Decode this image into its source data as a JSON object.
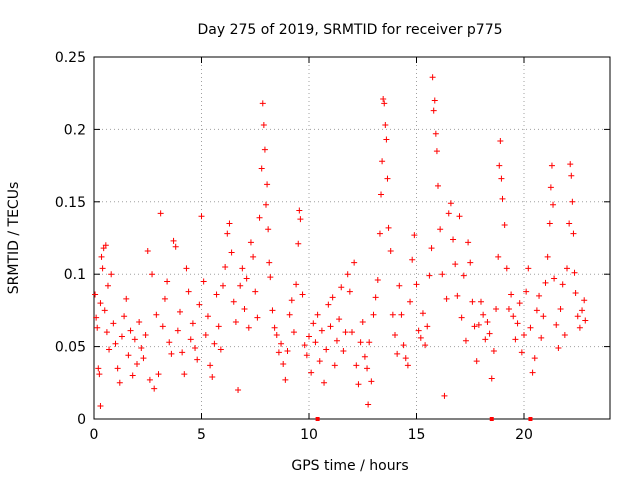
{
  "chart_data": {
    "type": "scatter",
    "title": "Day 275 of 2019, SRMTID for receiver p775",
    "xlabel": "GPS time / hours",
    "ylabel": "SRMTID / TECUs",
    "xlim": [
      0,
      24
    ],
    "ylim": [
      0,
      0.25
    ],
    "x_ticks": [
      0,
      5,
      10,
      15,
      20
    ],
    "x_tick_labels": [
      "0",
      "5",
      "10",
      "15",
      "20"
    ],
    "y_ticks": [
      0,
      0.05,
      0.1,
      0.15,
      0.2,
      0.25
    ],
    "y_tick_labels": [
      "0",
      "0.05",
      "0.1",
      "0.15",
      "0.2",
      "0.25"
    ],
    "grid": true,
    "marker": "plus",
    "color": "#ff0000",
    "series": [
      {
        "name": "SRMTID",
        "points": [
          [
            0.05,
            0.086
          ],
          [
            0.1,
            0.07
          ],
          [
            0.15,
            0.063
          ],
          [
            0.2,
            0.035
          ],
          [
            0.25,
            0.031
          ],
          [
            0.3,
            0.009
          ],
          [
            0.3,
            0.08
          ],
          [
            0.35,
            0.112
          ],
          [
            0.4,
            0.104
          ],
          [
            0.45,
            0.118
          ],
          [
            0.5,
            0.075
          ],
          [
            0.55,
            0.12
          ],
          [
            0.6,
            0.06
          ],
          [
            0.65,
            0.092
          ],
          [
            0.7,
            0.048
          ],
          [
            0.8,
            0.1
          ],
          [
            0.9,
            0.066
          ],
          [
            1.0,
            0.052
          ],
          [
            1.1,
            0.035
          ],
          [
            1.2,
            0.025
          ],
          [
            1.3,
            0.057
          ],
          [
            1.4,
            0.071
          ],
          [
            1.5,
            0.083
          ],
          [
            1.6,
            0.044
          ],
          [
            1.7,
            0.061
          ],
          [
            1.8,
            0.03
          ],
          [
            1.9,
            0.055
          ],
          [
            2.0,
            0.038
          ],
          [
            2.1,
            0.067
          ],
          [
            2.2,
            0.049
          ],
          [
            2.3,
            0.042
          ],
          [
            2.4,
            0.058
          ],
          [
            2.5,
            0.116
          ],
          [
            2.6,
            0.027
          ],
          [
            2.7,
            0.1
          ],
          [
            2.8,
            0.021
          ],
          [
            2.9,
            0.072
          ],
          [
            3.0,
            0.031
          ],
          [
            3.1,
            0.142
          ],
          [
            3.2,
            0.064
          ],
          [
            3.3,
            0.083
          ],
          [
            3.4,
            0.095
          ],
          [
            3.5,
            0.053
          ],
          [
            3.6,
            0.045
          ],
          [
            3.7,
            0.123
          ],
          [
            3.8,
            0.119
          ],
          [
            3.9,
            0.061
          ],
          [
            4.0,
            0.074
          ],
          [
            4.1,
            0.046
          ],
          [
            4.2,
            0.031
          ],
          [
            4.3,
            0.104
          ],
          [
            4.4,
            0.088
          ],
          [
            4.5,
            0.055
          ],
          [
            4.6,
            0.066
          ],
          [
            4.7,
            0.049
          ],
          [
            4.8,
            0.041
          ],
          [
            4.9,
            0.079
          ],
          [
            5.0,
            0.14
          ],
          [
            5.1,
            0.095
          ],
          [
            5.2,
            0.058
          ],
          [
            5.3,
            0.071
          ],
          [
            5.4,
            0.037
          ],
          [
            5.5,
            0.029
          ],
          [
            5.6,
            0.052
          ],
          [
            5.7,
            0.086
          ],
          [
            5.8,
            0.064
          ],
          [
            5.9,
            0.048
          ],
          [
            6.0,
            0.092
          ],
          [
            6.1,
            0.105
          ],
          [
            6.2,
            0.128
          ],
          [
            6.3,
            0.135
          ],
          [
            6.4,
            0.115
          ],
          [
            6.5,
            0.081
          ],
          [
            6.6,
            0.067
          ],
          [
            6.7,
            0.02
          ],
          [
            6.8,
            0.092
          ],
          [
            6.9,
            0.104
          ],
          [
            7.0,
            0.076
          ],
          [
            7.1,
            0.097
          ],
          [
            7.2,
            0.063
          ],
          [
            7.3,
            0.122
          ],
          [
            7.4,
            0.112
          ],
          [
            7.5,
            0.088
          ],
          [
            7.6,
            0.07
          ],
          [
            7.7,
            0.139
          ],
          [
            7.8,
            0.173
          ],
          [
            7.85,
            0.218
          ],
          [
            7.9,
            0.203
          ],
          [
            7.95,
            0.186
          ],
          [
            8.0,
            0.148
          ],
          [
            8.05,
            0.162
          ],
          [
            8.1,
            0.131
          ],
          [
            8.15,
            0.108
          ],
          [
            8.2,
            0.098
          ],
          [
            8.3,
            0.075
          ],
          [
            8.4,
            0.063
          ],
          [
            8.5,
            0.058
          ],
          [
            8.6,
            0.046
          ],
          [
            8.7,
            0.052
          ],
          [
            8.8,
            0.038
          ],
          [
            8.9,
            0.027
          ],
          [
            9.0,
            0.047
          ],
          [
            9.1,
            0.072
          ],
          [
            9.2,
            0.082
          ],
          [
            9.3,
            0.06
          ],
          [
            9.4,
            0.093
          ],
          [
            9.5,
            0.121
          ],
          [
            9.55,
            0.144
          ],
          [
            9.6,
            0.138
          ],
          [
            9.7,
            0.086
          ],
          [
            9.8,
            0.051
          ],
          [
            9.9,
            0.044
          ],
          [
            10.0,
            0.057
          ],
          [
            10.1,
            0.032
          ],
          [
            10.2,
            0.066
          ],
          [
            10.3,
            0.053
          ],
          [
            10.4,
            0.072
          ],
          [
            10.5,
            0.04
          ],
          [
            10.6,
            0.061
          ],
          [
            10.7,
            0.025
          ],
          [
            10.8,
            0.048
          ],
          [
            10.9,
            0.079
          ],
          [
            11.0,
            0.064
          ],
          [
            11.1,
            0.084
          ],
          [
            11.2,
            0.037
          ],
          [
            11.3,
            0.054
          ],
          [
            11.4,
            0.069
          ],
          [
            11.5,
            0.091
          ],
          [
            11.6,
            0.047
          ],
          [
            11.7,
            0.06
          ],
          [
            11.8,
            0.1
          ],
          [
            11.9,
            0.088
          ],
          [
            12.0,
            0.06
          ],
          [
            12.1,
            0.108
          ],
          [
            12.2,
            0.037
          ],
          [
            12.3,
            0.024
          ],
          [
            12.4,
            0.053
          ],
          [
            12.5,
            0.067
          ],
          [
            12.6,
            0.043
          ],
          [
            12.7,
            0.035
          ],
          [
            12.75,
            0.01
          ],
          [
            12.8,
            0.053
          ],
          [
            12.9,
            0.026
          ],
          [
            13.0,
            0.072
          ],
          [
            13.1,
            0.084
          ],
          [
            13.2,
            0.096
          ],
          [
            13.3,
            0.128
          ],
          [
            13.35,
            0.155
          ],
          [
            13.4,
            0.178
          ],
          [
            13.45,
            0.221
          ],
          [
            13.5,
            0.218
          ],
          [
            13.55,
            0.203
          ],
          [
            13.6,
            0.193
          ],
          [
            13.65,
            0.166
          ],
          [
            13.7,
            0.132
          ],
          [
            13.8,
            0.116
          ],
          [
            13.9,
            0.072
          ],
          [
            14.0,
            0.058
          ],
          [
            14.1,
            0.045
          ],
          [
            14.2,
            0.092
          ],
          [
            14.3,
            0.072
          ],
          [
            14.4,
            0.051
          ],
          [
            14.5,
            0.042
          ],
          [
            14.6,
            0.037
          ],
          [
            14.7,
            0.081
          ],
          [
            14.8,
            0.11
          ],
          [
            14.9,
            0.127
          ],
          [
            15.0,
            0.093
          ],
          [
            15.1,
            0.061
          ],
          [
            15.2,
            0.056
          ],
          [
            15.3,
            0.073
          ],
          [
            15.4,
            0.051
          ],
          [
            15.5,
            0.064
          ],
          [
            15.6,
            0.099
          ],
          [
            15.7,
            0.118
          ],
          [
            15.75,
            0.236
          ],
          [
            15.8,
            0.213
          ],
          [
            15.85,
            0.22
          ],
          [
            15.9,
            0.197
          ],
          [
            15.95,
            0.185
          ],
          [
            16.0,
            0.161
          ],
          [
            16.1,
            0.131
          ],
          [
            16.2,
            0.1
          ],
          [
            16.3,
            0.016
          ],
          [
            16.4,
            0.083
          ],
          [
            16.5,
            0.142
          ],
          [
            16.6,
            0.149
          ],
          [
            16.7,
            0.124
          ],
          [
            16.8,
            0.107
          ],
          [
            16.9,
            0.085
          ],
          [
            17.0,
            0.14
          ],
          [
            17.1,
            0.07
          ],
          [
            17.2,
            0.099
          ],
          [
            17.3,
            0.054
          ],
          [
            17.4,
            0.122
          ],
          [
            17.5,
            0.108
          ],
          [
            17.6,
            0.081
          ],
          [
            17.7,
            0.064
          ],
          [
            17.8,
            0.04
          ],
          [
            17.9,
            0.065
          ],
          [
            18.0,
            0.081
          ],
          [
            18.1,
            0.072
          ],
          [
            18.2,
            0.055
          ],
          [
            18.3,
            0.067
          ],
          [
            18.4,
            0.059
          ],
          [
            18.5,
            0.028
          ],
          [
            18.6,
            0.047
          ],
          [
            18.7,
            0.076
          ],
          [
            18.8,
            0.112
          ],
          [
            18.85,
            0.175
          ],
          [
            18.9,
            0.192
          ],
          [
            18.95,
            0.166
          ],
          [
            19.0,
            0.152
          ],
          [
            19.1,
            0.134
          ],
          [
            19.2,
            0.104
          ],
          [
            19.3,
            0.076
          ],
          [
            19.4,
            0.086
          ],
          [
            19.5,
            0.071
          ],
          [
            19.6,
            0.055
          ],
          [
            19.7,
            0.066
          ],
          [
            19.8,
            0.08
          ],
          [
            19.9,
            0.046
          ],
          [
            20.0,
            0.058
          ],
          [
            20.1,
            0.088
          ],
          [
            20.2,
            0.104
          ],
          [
            20.3,
            0.063
          ],
          [
            20.4,
            0.032
          ],
          [
            20.5,
            0.042
          ],
          [
            20.6,
            0.075
          ],
          [
            20.7,
            0.085
          ],
          [
            20.8,
            0.056
          ],
          [
            20.9,
            0.071
          ],
          [
            21.0,
            0.094
          ],
          [
            21.1,
            0.112
          ],
          [
            21.2,
            0.135
          ],
          [
            21.25,
            0.16
          ],
          [
            21.3,
            0.175
          ],
          [
            21.35,
            0.148
          ],
          [
            21.4,
            0.097
          ],
          [
            21.5,
            0.065
          ],
          [
            21.6,
            0.049
          ],
          [
            21.7,
            0.076
          ],
          [
            21.8,
            0.093
          ],
          [
            21.9,
            0.058
          ],
          [
            22.0,
            0.104
          ],
          [
            22.1,
            0.135
          ],
          [
            22.15,
            0.176
          ],
          [
            22.2,
            0.168
          ],
          [
            22.25,
            0.15
          ],
          [
            22.3,
            0.128
          ],
          [
            22.35,
            0.101
          ],
          [
            22.4,
            0.087
          ],
          [
            22.5,
            0.071
          ],
          [
            22.6,
            0.063
          ],
          [
            22.7,
            0.075
          ],
          [
            22.8,
            0.082
          ],
          [
            22.85,
            0.068
          ]
        ]
      }
    ],
    "markers_on_xaxis": [
      10.4,
      18.5,
      20.3
    ]
  }
}
